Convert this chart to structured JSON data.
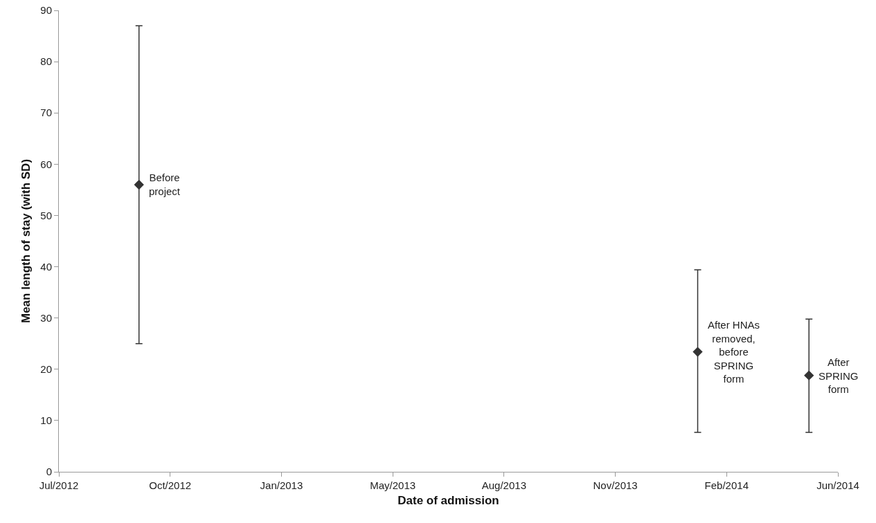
{
  "chart_data": {
    "type": "scatter",
    "xlabel": "Date of admission",
    "ylabel": "Mean length of stay (with SD)",
    "x": [
      "2012-09-16",
      "2014-01-31",
      "2014-05-11"
    ],
    "values": [
      56,
      23.4,
      18.8
    ],
    "errors": [
      [
        25,
        87
      ],
      [
        7.7,
        39.4
      ],
      [
        7.7,
        29.8
      ]
    ],
    "color": "#333333",
    "marker": "diamond",
    "grid": false,
    "xlim": [
      "2012-07-06",
      "2014-06-06"
    ],
    "xticks": [
      {
        "value": "2012-07-06",
        "label": "Jul/2012"
      },
      {
        "value": "2012-10-14",
        "label": "Oct/2012"
      },
      {
        "value": "2013-01-22",
        "label": "Jan/2013"
      },
      {
        "value": "2013-05-02",
        "label": "May/2013"
      },
      {
        "value": "2013-08-10",
        "label": "Aug/2013"
      },
      {
        "value": "2013-11-18",
        "label": "Nov/2013"
      },
      {
        "value": "2014-02-26",
        "label": "Feb/2014"
      },
      {
        "value": "2014-06-06",
        "label": "Jun/2014"
      }
    ],
    "ylim": [
      0,
      90
    ],
    "yticks": [
      0,
      10,
      20,
      30,
      40,
      50,
      60,
      70,
      80,
      90
    ],
    "annotations": [
      {
        "text": "Before\nproject",
        "x": "2012-09-16",
        "y": 56
      },
      {
        "text": "After HNAs\nremoved,\nbefore\nSPRING\nform",
        "x": "2014-01-31",
        "y": 23.4
      },
      {
        "text": "After\nSPRING\nform",
        "x": "2014-05-11",
        "y": 18.8
      }
    ]
  }
}
